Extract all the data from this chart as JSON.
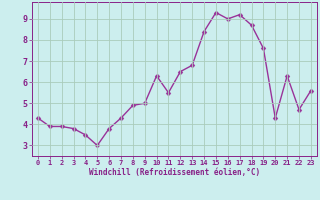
{
  "x": [
    0,
    1,
    2,
    3,
    4,
    5,
    6,
    7,
    8,
    9,
    10,
    11,
    12,
    13,
    14,
    15,
    16,
    17,
    18,
    19,
    20,
    21,
    22,
    23
  ],
  "y": [
    4.3,
    3.9,
    3.9,
    3.8,
    3.5,
    3.0,
    3.8,
    4.3,
    4.9,
    5.0,
    6.3,
    5.5,
    6.5,
    6.8,
    8.4,
    9.3,
    9.0,
    9.2,
    8.7,
    7.6,
    4.3,
    6.3,
    4.7,
    5.6
  ],
  "line_color": "#993399",
  "marker_color": "#993399",
  "bg_color": "#cceeee",
  "grid_color": "#aaccbb",
  "xlabel": "Windchill (Refroidissement éolien,°C)",
  "xlim": [
    -0.5,
    23.5
  ],
  "ylim": [
    2.5,
    9.8
  ],
  "yticks": [
    3,
    4,
    5,
    6,
    7,
    8,
    9
  ],
  "xticks": [
    0,
    1,
    2,
    3,
    4,
    5,
    6,
    7,
    8,
    9,
    10,
    11,
    12,
    13,
    14,
    15,
    16,
    17,
    18,
    19,
    20,
    21,
    22,
    23
  ],
  "font_color": "#882288",
  "marker_size": 2.5,
  "linewidth": 1.0
}
